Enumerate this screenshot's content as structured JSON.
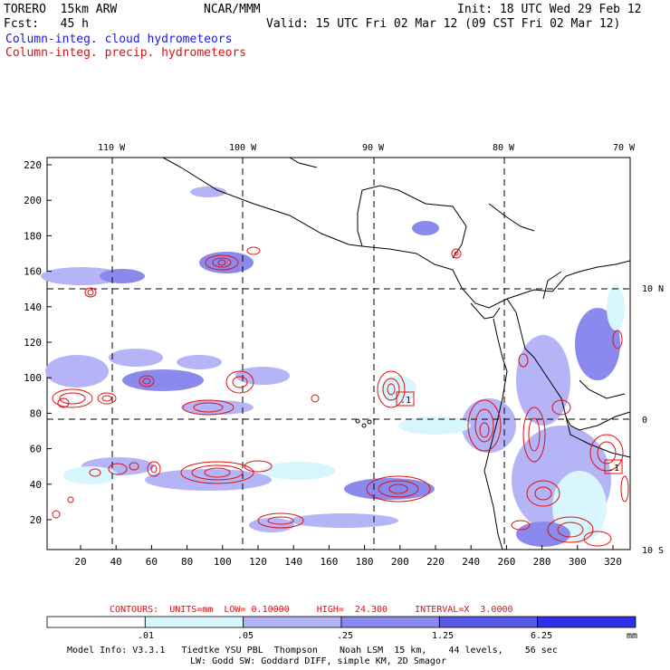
{
  "header": {
    "model_line": "TORERO  15km ARW",
    "org": "NCAR/MMM",
    "init": "Init: 18 UTC Wed 29 Feb 12",
    "forecast": "Fcst:   45 h",
    "valid": "Valid: 15 UTC Fri 02 Mar 12 (09 CST Fri 02 Mar 12)",
    "field_cloud": "Column-integ. cloud hydrometeors",
    "field_precip": "Column-integ. precip. hydrometeors"
  },
  "colors": {
    "cloud": "#1b1be0",
    "precip": "#e01010",
    "scale": [
      "#ffffff",
      "#d8f6fd",
      "#b4b4f6",
      "#8a8aee",
      "#5a5ae8",
      "#2f2fe8"
    ]
  },
  "map": {
    "top_lon_labels": [
      "110 W",
      "100 W",
      "90 W",
      "80 W",
      "70 W"
    ],
    "right_lat_labels": [
      "10 N",
      "0",
      "10 S"
    ],
    "y_ticks": [
      "220",
      "200",
      "180",
      "160",
      "140",
      "120",
      "100",
      "80",
      "60",
      "40",
      "20"
    ],
    "x_ticks": [
      "20",
      "40",
      "60",
      "80",
      "100",
      "120",
      "140",
      "160",
      "180",
      "200",
      "220",
      "240",
      "260",
      "280",
      "300",
      "320"
    ],
    "max_label": ".1"
  },
  "contours": {
    "label": "CONTOURS:  UNITS=mm  LOW= 0.10000     HIGH=  24.300     INTERVAL=X  3.0000"
  },
  "colorbar": {
    "labels": [
      ".01",
      ".05",
      ".25",
      "1.25",
      "6.25"
    ],
    "unit": "mm"
  },
  "footer": {
    "line1": "Model Info: V3.3.1   Tiedtke YSU PBL  Thompson    Noah LSM  15 km,    44 levels,    56 sec",
    "line2": "LW: Godd SW: Goddard DIFF, simple KM, 2D Smagor"
  }
}
